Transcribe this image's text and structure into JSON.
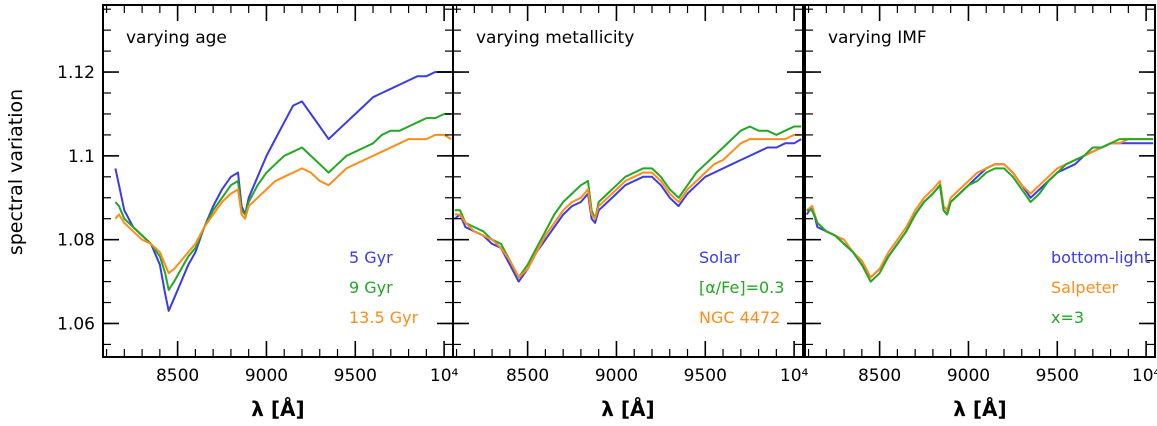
{
  "chart_data": {
    "type": "line",
    "ylabel": "spectral variation",
    "ylim": [
      1.052,
      1.136
    ],
    "y_ticks": [
      1.06,
      1.08,
      1.1,
      1.12
    ],
    "y_tick_labels": [
      "1.06",
      "1.08",
      "1.1",
      "1.12"
    ],
    "panels": [
      {
        "title": "varying age",
        "xlabel": "λ [Å]",
        "xlim": [
          8080,
          10050
        ],
        "x_ticks": [
          8500,
          9000,
          9500,
          10000
        ],
        "x_tick_labels": [
          "8500",
          "9000",
          "9500",
          "10⁴"
        ],
        "legend_placement": "bottom-right",
        "series": [
          {
            "name": "5 Gyr",
            "color": "#3b3be8",
            "x": [
              8150,
              8170,
              8200,
              8250,
              8300,
              8350,
              8400,
              8430,
              8450,
              8480,
              8520,
              8560,
              8600,
              8650,
              8700,
              8750,
              8800,
              8840,
              8860,
              8880,
              8900,
              8950,
              9000,
              9050,
              9100,
              9150,
              9200,
              9250,
              9300,
              9350,
              9400,
              9450,
              9500,
              9550,
              9600,
              9650,
              9700,
              9750,
              9800,
              9850,
              9900,
              9950,
              10000,
              10040
            ],
            "y": [
              1.097,
              1.093,
              1.087,
              1.083,
              1.081,
              1.079,
              1.074,
              1.067,
              1.063,
              1.066,
              1.07,
              1.074,
              1.077,
              1.083,
              1.088,
              1.092,
              1.095,
              1.096,
              1.088,
              1.086,
              1.09,
              1.095,
              1.1,
              1.104,
              1.108,
              1.112,
              1.113,
              1.11,
              1.107,
              1.104,
              1.106,
              1.108,
              1.11,
              1.112,
              1.114,
              1.115,
              1.116,
              1.117,
              1.118,
              1.119,
              1.119,
              1.12,
              1.12,
              1.12
            ]
          },
          {
            "name": "9 Gyr",
            "color": "#22a822",
            "x": [
              8150,
              8170,
              8200,
              8250,
              8300,
              8350,
              8400,
              8430,
              8450,
              8480,
              8520,
              8560,
              8600,
              8650,
              8700,
              8750,
              8800,
              8840,
              8860,
              8880,
              8900,
              8950,
              9000,
              9050,
              9100,
              9150,
              9200,
              9250,
              9300,
              9350,
              9400,
              9450,
              9500,
              9550,
              9600,
              9650,
              9700,
              9750,
              9800,
              9850,
              9900,
              9950,
              10000,
              10040
            ],
            "y": [
              1.089,
              1.088,
              1.085,
              1.083,
              1.081,
              1.079,
              1.076,
              1.072,
              1.068,
              1.07,
              1.073,
              1.076,
              1.078,
              1.083,
              1.087,
              1.09,
              1.093,
              1.094,
              1.087,
              1.086,
              1.089,
              1.093,
              1.096,
              1.098,
              1.1,
              1.101,
              1.102,
              1.1,
              1.098,
              1.096,
              1.098,
              1.1,
              1.101,
              1.102,
              1.103,
              1.105,
              1.106,
              1.106,
              1.107,
              1.108,
              1.109,
              1.109,
              1.11,
              1.11
            ]
          },
          {
            "name": "13.5 Gyr",
            "color": "#ff8c1a",
            "x": [
              8150,
              8170,
              8200,
              8250,
              8300,
              8350,
              8400,
              8430,
              8450,
              8480,
              8520,
              8560,
              8600,
              8650,
              8700,
              8750,
              8800,
              8840,
              8860,
              8880,
              8900,
              8950,
              9000,
              9050,
              9100,
              9150,
              9200,
              9250,
              9300,
              9350,
              9400,
              9450,
              9500,
              9550,
              9600,
              9650,
              9700,
              9750,
              9800,
              9850,
              9900,
              9950,
              10000,
              10040
            ],
            "y": [
              1.085,
              1.086,
              1.084,
              1.082,
              1.08,
              1.079,
              1.077,
              1.074,
              1.072,
              1.073,
              1.075,
              1.077,
              1.079,
              1.083,
              1.086,
              1.089,
              1.091,
              1.092,
              1.086,
              1.085,
              1.088,
              1.09,
              1.092,
              1.094,
              1.095,
              1.096,
              1.097,
              1.096,
              1.094,
              1.093,
              1.095,
              1.097,
              1.098,
              1.099,
              1.1,
              1.101,
              1.102,
              1.103,
              1.104,
              1.104,
              1.104,
              1.105,
              1.105,
              1.104
            ]
          }
        ]
      },
      {
        "title": "varying metallicity",
        "xlabel": "λ [Å]",
        "xlim": [
          8080,
          10050
        ],
        "x_ticks": [
          8500,
          9000,
          9500,
          10000
        ],
        "x_tick_labels": [
          "8500",
          "9000",
          "9500",
          "10⁴"
        ],
        "legend_placement": "bottom-right",
        "series": [
          {
            "name": "Solar",
            "color": "#3b3be8",
            "x": [
              8090,
              8120,
              8150,
              8200,
              8250,
              8300,
              8350,
              8400,
              8450,
              8500,
              8550,
              8600,
              8650,
              8700,
              8750,
              8800,
              8840,
              8860,
              8880,
              8900,
              8950,
              9000,
              9050,
              9100,
              9150,
              9200,
              9250,
              9300,
              9350,
              9400,
              9450,
              9500,
              9550,
              9600,
              9650,
              9700,
              9750,
              9800,
              9850,
              9900,
              9950,
              10000,
              10040
            ],
            "y": [
              1.085,
              1.086,
              1.083,
              1.082,
              1.081,
              1.079,
              1.078,
              1.074,
              1.07,
              1.073,
              1.077,
              1.08,
              1.083,
              1.086,
              1.088,
              1.089,
              1.091,
              1.085,
              1.084,
              1.087,
              1.089,
              1.091,
              1.093,
              1.094,
              1.095,
              1.095,
              1.093,
              1.09,
              1.088,
              1.091,
              1.093,
              1.095,
              1.096,
              1.097,
              1.098,
              1.099,
              1.1,
              1.101,
              1.102,
              1.102,
              1.103,
              1.103,
              1.104
            ]
          },
          {
            "name": "[α/Fe]=0.3",
            "color": "#22a822",
            "x": [
              8090,
              8120,
              8150,
              8200,
              8250,
              8300,
              8350,
              8400,
              8450,
              8500,
              8550,
              8600,
              8650,
              8700,
              8750,
              8800,
              8840,
              8860,
              8880,
              8900,
              8950,
              9000,
              9050,
              9100,
              9150,
              9200,
              9250,
              9300,
              9350,
              9400,
              9450,
              9500,
              9550,
              9600,
              9650,
              9700,
              9750,
              9800,
              9850,
              9900,
              9950,
              10000,
              10040
            ],
            "y": [
              1.087,
              1.087,
              1.084,
              1.083,
              1.082,
              1.08,
              1.079,
              1.075,
              1.071,
              1.074,
              1.078,
              1.082,
              1.086,
              1.089,
              1.091,
              1.093,
              1.094,
              1.087,
              1.085,
              1.089,
              1.091,
              1.093,
              1.095,
              1.096,
              1.097,
              1.097,
              1.095,
              1.092,
              1.09,
              1.093,
              1.096,
              1.098,
              1.1,
              1.102,
              1.104,
              1.106,
              1.107,
              1.106,
              1.106,
              1.105,
              1.106,
              1.107,
              1.107
            ]
          },
          {
            "name": "NGC 4472",
            "color": "#ff8c1a",
            "x": [
              8090,
              8120,
              8150,
              8200,
              8250,
              8300,
              8350,
              8400,
              8450,
              8500,
              8550,
              8600,
              8650,
              8700,
              8750,
              8800,
              8840,
              8860,
              8880,
              8900,
              8950,
              9000,
              9050,
              9100,
              9150,
              9200,
              9250,
              9300,
              9350,
              9400,
              9450,
              9500,
              9550,
              9600,
              9650,
              9700,
              9750,
              9800,
              9850,
              9900,
              9950,
              10000,
              10040
            ],
            "y": [
              1.086,
              1.086,
              1.084,
              1.082,
              1.081,
              1.08,
              1.078,
              1.075,
              1.071,
              1.073,
              1.077,
              1.081,
              1.084,
              1.087,
              1.089,
              1.09,
              1.092,
              1.086,
              1.085,
              1.088,
              1.09,
              1.092,
              1.094,
              1.095,
              1.096,
              1.096,
              1.094,
              1.091,
              1.089,
              1.092,
              1.094,
              1.096,
              1.098,
              1.099,
              1.101,
              1.103,
              1.104,
              1.104,
              1.104,
              1.104,
              1.104,
              1.105,
              1.105
            ]
          }
        ]
      },
      {
        "title": "varying IMF",
        "xlabel": "λ [Å]",
        "xlim": [
          8080,
          10050
        ],
        "x_ticks": [
          8500,
          9000,
          9500,
          10000
        ],
        "x_tick_labels": [
          "8500",
          "9000",
          "9500",
          "10⁴"
        ],
        "legend_placement": "bottom-right",
        "series": [
          {
            "name": "bottom-light",
            "color": "#3b3be8",
            "x": [
              8090,
              8120,
              8150,
              8200,
              8250,
              8300,
              8350,
              8400,
              8450,
              8500,
              8550,
              8600,
              8650,
              8700,
              8750,
              8800,
              8840,
              8860,
              8880,
              8900,
              8950,
              9000,
              9050,
              9100,
              9150,
              9200,
              9250,
              9300,
              9350,
              9400,
              9450,
              9500,
              9550,
              9600,
              9650,
              9700,
              9750,
              9800,
              9850,
              9900,
              9950,
              10000,
              10040
            ],
            "y": [
              1.086,
              1.088,
              1.083,
              1.082,
              1.081,
              1.079,
              1.077,
              1.074,
              1.071,
              1.073,
              1.076,
              1.079,
              1.082,
              1.086,
              1.089,
              1.091,
              1.093,
              1.087,
              1.086,
              1.089,
              1.091,
              1.093,
              1.095,
              1.097,
              1.098,
              1.098,
              1.096,
              1.093,
              1.09,
              1.092,
              1.094,
              1.096,
              1.097,
              1.098,
              1.1,
              1.101,
              1.102,
              1.103,
              1.103,
              1.103,
              1.103,
              1.103,
              1.103
            ]
          },
          {
            "name": "Salpeter",
            "color": "#ff8c1a",
            "x": [
              8090,
              8120,
              8150,
              8200,
              8250,
              8300,
              8350,
              8400,
              8450,
              8500,
              8550,
              8600,
              8650,
              8700,
              8750,
              8800,
              8840,
              8860,
              8880,
              8900,
              8950,
              9000,
              9050,
              9100,
              9150,
              9200,
              9250,
              9300,
              9350,
              9400,
              9450,
              9500,
              9550,
              9600,
              9650,
              9700,
              9750,
              9800,
              9850,
              9900,
              9950,
              10000,
              10040
            ],
            "y": [
              1.087,
              1.088,
              1.084,
              1.082,
              1.081,
              1.08,
              1.077,
              1.075,
              1.071,
              1.073,
              1.077,
              1.08,
              1.083,
              1.087,
              1.09,
              1.092,
              1.094,
              1.088,
              1.087,
              1.09,
              1.092,
              1.094,
              1.096,
              1.097,
              1.098,
              1.098,
              1.096,
              1.093,
              1.091,
              1.093,
              1.095,
              1.097,
              1.098,
              1.099,
              1.1,
              1.101,
              1.102,
              1.103,
              1.103,
              1.104,
              1.104,
              1.104,
              1.104
            ]
          },
          {
            "name": "x=3",
            "color": "#22a822",
            "x": [
              8090,
              8120,
              8150,
              8200,
              8250,
              8300,
              8350,
              8400,
              8450,
              8500,
              8550,
              8600,
              8650,
              8700,
              8750,
              8800,
              8840,
              8860,
              8880,
              8900,
              8950,
              9000,
              9050,
              9100,
              9150,
              9200,
              9250,
              9300,
              9350,
              9400,
              9450,
              9500,
              9550,
              9600,
              9650,
              9700,
              9750,
              9800,
              9850,
              9900,
              9950,
              10000,
              10040
            ],
            "y": [
              1.087,
              1.087,
              1.084,
              1.082,
              1.081,
              1.079,
              1.077,
              1.074,
              1.07,
              1.072,
              1.076,
              1.079,
              1.082,
              1.086,
              1.089,
              1.091,
              1.093,
              1.087,
              1.086,
              1.089,
              1.091,
              1.093,
              1.094,
              1.096,
              1.097,
              1.097,
              1.095,
              1.092,
              1.089,
              1.091,
              1.094,
              1.096,
              1.098,
              1.099,
              1.1,
              1.102,
              1.102,
              1.103,
              1.104,
              1.104,
              1.104,
              1.104,
              1.104
            ]
          }
        ]
      }
    ]
  }
}
